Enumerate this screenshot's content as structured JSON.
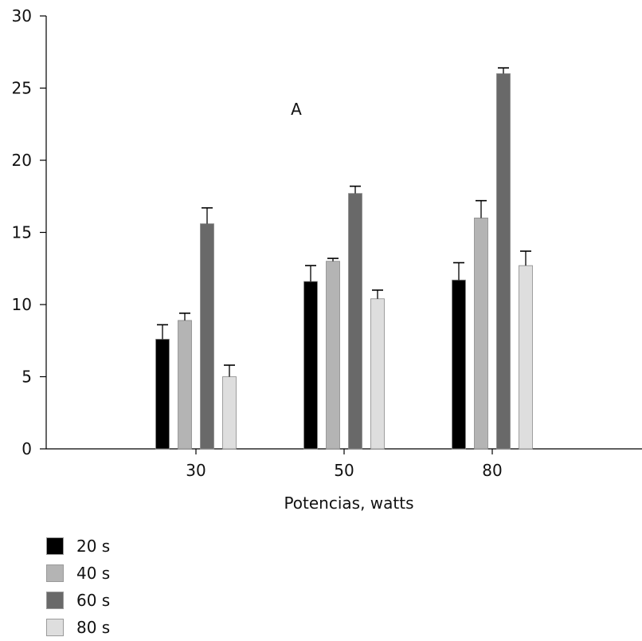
{
  "chart_data": {
    "type": "bar",
    "title": "",
    "annotation": "A",
    "xlabel": "Potencias, watts",
    "ylabel": "",
    "ylim": [
      0,
      30
    ],
    "yticks": [
      "0",
      "5",
      "10",
      "15",
      "20",
      "25",
      "30"
    ],
    "categories": [
      "30",
      "50",
      "80"
    ],
    "error_bars": true,
    "series": [
      {
        "name": "20 s",
        "color": "#000000",
        "values": [
          7.6,
          11.6,
          11.7
        ],
        "errors": [
          1.0,
          1.1,
          1.2
        ]
      },
      {
        "name": "40 s",
        "color": "#b4b4b4",
        "values": [
          8.9,
          13.0,
          16.0
        ],
        "errors": [
          0.5,
          0.2,
          1.2
        ]
      },
      {
        "name": "60 s",
        "color": "#696969",
        "values": [
          15.6,
          17.7,
          26.0
        ],
        "errors": [
          1.1,
          0.5,
          0.4
        ]
      },
      {
        "name": "80 s",
        "color": "#dedede",
        "values": [
          5.0,
          10.4,
          12.7
        ],
        "errors": [
          0.8,
          0.6,
          1.0
        ]
      }
    ]
  }
}
